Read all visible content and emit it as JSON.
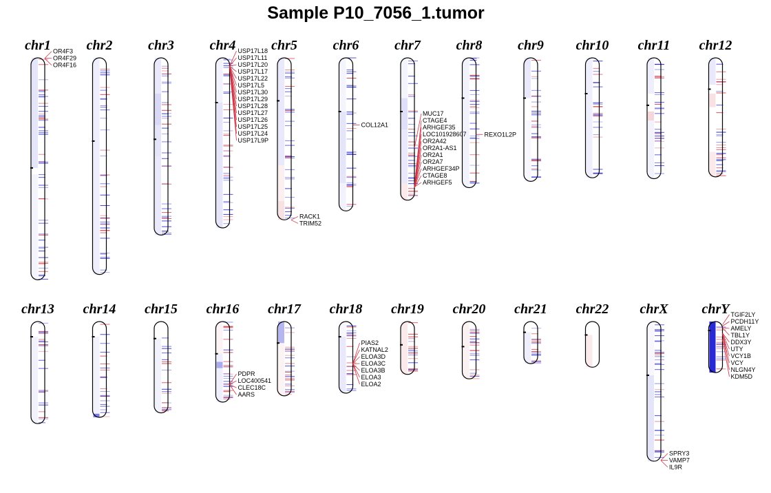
{
  "chart_data": {
    "type": "heatmap",
    "title": "Sample P10_7056_1.tumor",
    "colors": {
      "loss": "#2a2ad4",
      "gain": "#cc3344",
      "outline": "#000000",
      "link": "#cc3344"
    },
    "chromosomes": [
      {
        "name": "chr1",
        "length": 248,
        "centromere": 123,
        "segments": [
          [
            0,
            123,
            "loss",
            0.12
          ],
          [
            130,
            248,
            "loss",
            0.05
          ]
        ],
        "blues": 34,
        "reds": 16,
        "genes": [
          {
            "label": "OR4F3",
            "pos": 0.5
          },
          {
            "label": "OR4F29",
            "pos": 0.6
          },
          {
            "label": "OR4F16",
            "pos": 0.7
          }
        ]
      },
      {
        "name": "chr2",
        "length": 242,
        "centromere": 93,
        "segments": [
          [
            0,
            242,
            "loss",
            0.08
          ]
        ],
        "blues": 30,
        "reds": 12,
        "genes": []
      },
      {
        "name": "chr3",
        "length": 198,
        "centromere": 91,
        "segments": [
          [
            0,
            40,
            "loss",
            0.1
          ],
          [
            40,
            75,
            "loss",
            0.18
          ],
          [
            75,
            110,
            "loss",
            0.12
          ],
          [
            110,
            198,
            "loss",
            0.1
          ]
        ],
        "blues": 28,
        "reds": 10,
        "genes": []
      },
      {
        "name": "chr4",
        "length": 190,
        "centromere": 50,
        "segments": [
          [
            0,
            50,
            "loss",
            0.06
          ],
          [
            50,
            190,
            "loss",
            0.12
          ]
        ],
        "blues": 26,
        "reds": 14,
        "genes": [
          {
            "label": "USP17L18",
            "pos": 9.2
          },
          {
            "label": "USP17L11",
            "pos": 9.25
          },
          {
            "label": "USP17L20",
            "pos": 9.3
          },
          {
            "label": "USP17L17",
            "pos": 9.35
          },
          {
            "label": "USP17L22",
            "pos": 9.4
          },
          {
            "label": "USP17L5",
            "pos": 9.45
          },
          {
            "label": "USP17L30",
            "pos": 9.5
          },
          {
            "label": "USP17L29",
            "pos": 9.55
          },
          {
            "label": "USP17L28",
            "pos": 9.6
          },
          {
            "label": "USP17L27",
            "pos": 9.65
          },
          {
            "label": "USP17L26",
            "pos": 9.7
          },
          {
            "label": "USP17L25",
            "pos": 9.75
          },
          {
            "label": "USP17L24",
            "pos": 9.8
          },
          {
            "label": "USP17L9P",
            "pos": 9.85
          }
        ]
      },
      {
        "name": "chr5",
        "length": 181,
        "centromere": 48,
        "segments": [
          [
            0,
            120,
            "loss",
            0.1
          ],
          [
            120,
            160,
            "gain",
            0.08
          ],
          [
            160,
            181,
            "gain",
            0.15
          ]
        ],
        "blues": 24,
        "reds": 8,
        "genes": [
          {
            "label": "RACK1",
            "pos": 181.1
          },
          {
            "label": "TRIM52",
            "pos": 181.2
          }
        ]
      },
      {
        "name": "chr6",
        "length": 171,
        "centromere": 60,
        "segments": [
          [
            0,
            60,
            "loss",
            0.05
          ],
          [
            60,
            140,
            "loss",
            0.12
          ],
          [
            140,
            171,
            "loss",
            0.06
          ]
        ],
        "blues": 26,
        "reds": 6,
        "genes": [
          {
            "label": "COL12A1",
            "pos": 75.1
          }
        ]
      },
      {
        "name": "chr7",
        "length": 159,
        "centromere": 60,
        "segments": [
          [
            0,
            45,
            "loss",
            0.05
          ],
          [
            45,
            80,
            "loss",
            0.15
          ],
          [
            80,
            140,
            "loss",
            0.1
          ],
          [
            140,
            159,
            "gain",
            0.1
          ]
        ],
        "blues": 22,
        "reds": 14,
        "genes": [
          {
            "label": "MUC17",
            "pos": 100.8
          },
          {
            "label": "CTAGE4",
            "pos": 143.5
          },
          {
            "label": "ARHGEF35",
            "pos": 143.9
          },
          {
            "label": "LOC101928607",
            "pos": 144.0
          },
          {
            "label": "OR2A42",
            "pos": 144.3
          },
          {
            "label": "OR2A1-AS1",
            "pos": 144.4
          },
          {
            "label": "OR2A1",
            "pos": 144.5
          },
          {
            "label": "OR2A7",
            "pos": 144.7
          },
          {
            "label": "ARHGEF34P",
            "pos": 144.8
          },
          {
            "label": "CTAGE8",
            "pos": 145.0
          },
          {
            "label": "ARHGEF5",
            "pos": 144.3
          }
        ]
      },
      {
        "name": "chr8",
        "length": 145,
        "centromere": 45,
        "segments": [
          [
            0,
            145,
            "loss",
            0.06
          ]
        ],
        "blues": 20,
        "reds": 10,
        "genes": [
          {
            "label": "REXO1L2P",
            "pos": 85.6
          }
        ]
      },
      {
        "name": "chr9",
        "length": 138,
        "centromere": 45,
        "segments": [
          [
            0,
            45,
            "loss",
            0.1
          ],
          [
            70,
            138,
            "loss",
            0.04
          ]
        ],
        "blues": 18,
        "reds": 12,
        "genes": []
      },
      {
        "name": "chr10",
        "length": 134,
        "centromere": 40,
        "segments": [
          [
            0,
            134,
            "loss",
            0.08
          ]
        ],
        "blues": 18,
        "reds": 8,
        "genes": []
      },
      {
        "name": "chr11",
        "length": 135,
        "centromere": 53,
        "segments": [
          [
            0,
            40,
            "loss",
            0.08
          ],
          [
            60,
            70,
            "gain",
            0.2
          ],
          [
            70,
            135,
            "loss",
            0.06
          ]
        ],
        "blues": 20,
        "reds": 10,
        "genes": []
      },
      {
        "name": "chr12",
        "length": 133,
        "centromere": 35,
        "segments": [
          [
            0,
            30,
            "loss",
            0.1
          ],
          [
            40,
            55,
            "gain",
            0.15
          ],
          [
            105,
            133,
            "gain",
            0.1
          ]
        ],
        "blues": 16,
        "reds": 16,
        "genes": []
      },
      {
        "name": "chr13",
        "length": 114,
        "centromere": 17,
        "segments": [
          [
            17,
            114,
            "loss",
            0.06
          ]
        ],
        "blues": 14,
        "reds": 8,
        "genes": []
      },
      {
        "name": "chr14",
        "length": 107,
        "centromere": 17,
        "segments": [
          [
            17,
            107,
            "loss",
            0.06
          ],
          [
            103,
            107,
            "loss",
            0.6
          ]
        ],
        "blues": 14,
        "reds": 8,
        "genes": []
      },
      {
        "name": "chr15",
        "length": 102,
        "centromere": 19,
        "segments": [
          [
            19,
            102,
            "loss",
            0.06
          ]
        ],
        "blues": 12,
        "reds": 8,
        "genes": []
      },
      {
        "name": "chr16",
        "length": 90,
        "centromere": 36,
        "segments": [
          [
            0,
            36,
            "gain",
            0.06
          ],
          [
            36,
            90,
            "loss",
            0.08
          ],
          [
            45,
            52,
            "loss",
            0.35
          ]
        ],
        "blues": 12,
        "reds": 14,
        "genes": [
          {
            "label": "PDPR",
            "pos": 70.1
          },
          {
            "label": "LOC400541",
            "pos": 70.2
          },
          {
            "label": "CLEC18C",
            "pos": 70.3
          },
          {
            "label": "AARS",
            "pos": 70.4
          }
        ]
      },
      {
        "name": "chr17",
        "length": 83,
        "centromere": 24,
        "segments": [
          [
            0,
            24,
            "loss",
            0.35
          ],
          [
            24,
            83,
            "gain",
            0.06
          ]
        ],
        "blues": 10,
        "reds": 12,
        "genes": []
      },
      {
        "name": "chr18",
        "length": 80,
        "centromere": 17,
        "segments": [
          [
            0,
            17,
            "loss",
            0.04
          ],
          [
            17,
            80,
            "loss",
            0.1
          ]
        ],
        "blues": 12,
        "reds": 8,
        "genes": [
          {
            "label": "PIAS2",
            "pos": 46.9
          },
          {
            "label": "KATNAL2",
            "pos": 47.0
          },
          {
            "label": "ELOA3D",
            "pos": 47.1
          },
          {
            "label": "ELOA3C",
            "pos": 47.2
          },
          {
            "label": "ELOA3B",
            "pos": 47.3
          },
          {
            "label": "ELOA3",
            "pos": 47.4
          },
          {
            "label": "ELOA2",
            "pos": 47.5
          }
        ]
      },
      {
        "name": "chr19",
        "length": 59,
        "centromere": 26,
        "segments": [
          [
            0,
            59,
            "gain",
            0.1
          ]
        ],
        "blues": 8,
        "reds": 14,
        "genes": []
      },
      {
        "name": "chr20",
        "length": 64,
        "centromere": 28,
        "segments": [
          [
            0,
            64,
            "gain",
            0.07
          ]
        ],
        "blues": 10,
        "reds": 10,
        "genes": []
      },
      {
        "name": "chr21",
        "length": 47,
        "centromere": 12,
        "segments": [
          [
            12,
            47,
            "loss",
            0.08
          ]
        ],
        "blues": 8,
        "reds": 8,
        "genes": []
      },
      {
        "name": "chr22",
        "length": 51,
        "centromere": 15,
        "segments": [
          [
            15,
            51,
            "gain",
            0.1
          ]
        ],
        "blues": 0,
        "reds": 0,
        "genes": []
      },
      {
        "name": "chrX",
        "length": 156,
        "centromere": 60,
        "segments": [
          [
            0,
            60,
            "loss",
            0.04
          ],
          [
            60,
            156,
            "loss",
            0.12
          ]
        ],
        "blues": 28,
        "reds": 6,
        "genes": [
          {
            "label": "SPRY3",
            "pos": 155.0
          },
          {
            "label": "VAMP7",
            "pos": 155.1
          },
          {
            "label": "IL9R",
            "pos": 155.2
          }
        ]
      },
      {
        "name": "chrY",
        "length": 57,
        "centromere": 10,
        "segments": [
          [
            0,
            57,
            "loss",
            1.0
          ]
        ],
        "blues": 6,
        "reds": 10,
        "genes": [
          {
            "label": "TGIF2LY",
            "pos": 3.5
          },
          {
            "label": "PCDH11Y",
            "pos": 5.0
          },
          {
            "label": "AMELY",
            "pos": 6.8
          },
          {
            "label": "TBL1Y",
            "pos": 7.0
          },
          {
            "label": "DDX3Y",
            "pos": 12.9
          },
          {
            "label": "UTY",
            "pos": 13.2
          },
          {
            "label": "VCY1B",
            "pos": 13.9
          },
          {
            "label": "VCY",
            "pos": 14.0
          },
          {
            "label": "NLGN4Y",
            "pos": 14.5
          },
          {
            "label": "KDM5D",
            "pos": 19.7
          }
        ]
      }
    ]
  }
}
